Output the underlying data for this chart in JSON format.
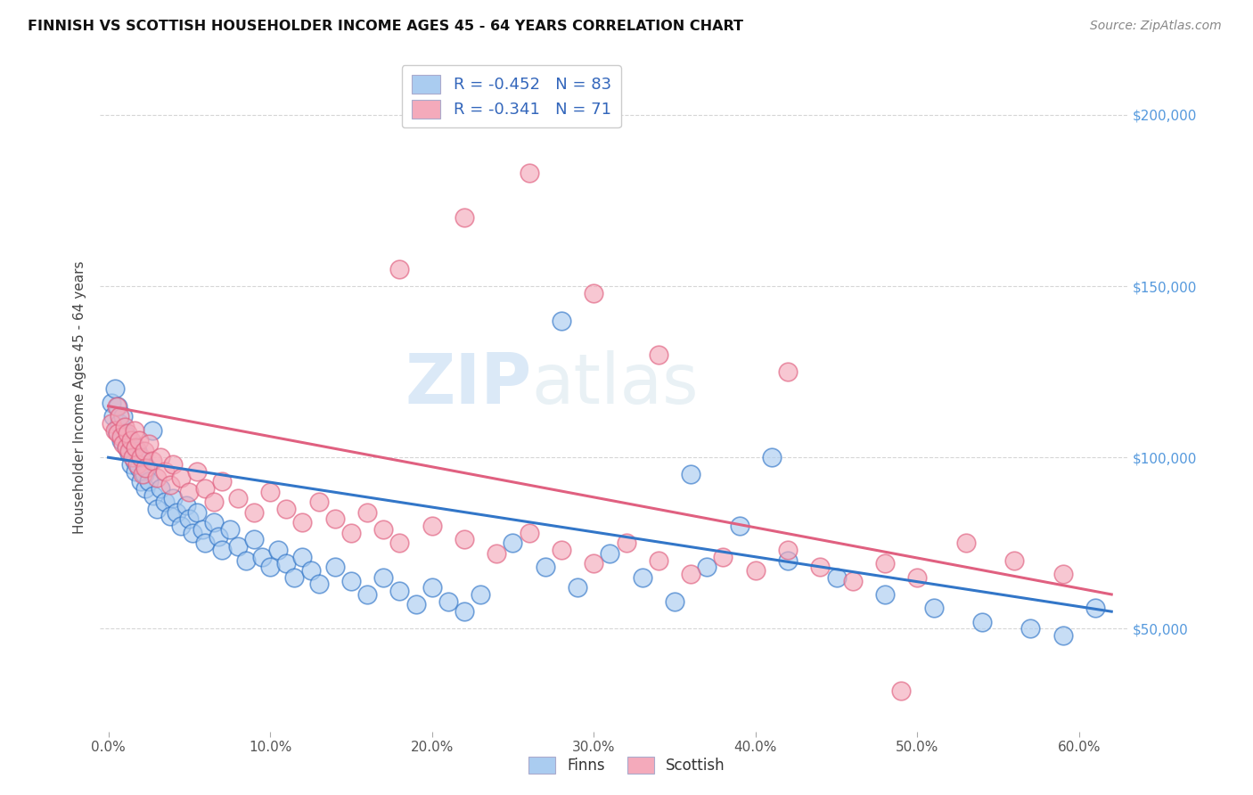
{
  "title": "FINNISH VS SCOTTISH HOUSEHOLDER INCOME AGES 45 - 64 YEARS CORRELATION CHART",
  "source": "Source: ZipAtlas.com",
  "ylabel_label": "Householder Income Ages 45 - 64 years",
  "ylabel_ticks": [
    50000,
    100000,
    150000,
    200000
  ],
  "ylabel_tick_labels": [
    "$50,000",
    "$100,000",
    "$150,000",
    "$200,000"
  ],
  "xlim": [
    -0.005,
    0.63
  ],
  "ylim": [
    20000,
    215000
  ],
  "finn_R": "-0.452",
  "finn_N": "83",
  "scott_R": "-0.341",
  "scott_N": "71",
  "finn_color": "#aaccf0",
  "scott_color": "#f4aabb",
  "finn_line_color": "#3276c8",
  "scott_line_color": "#e06080",
  "background_color": "#ffffff",
  "grid_color": "#cccccc",
  "watermark_zip": "ZIP",
  "watermark_atlas": "atlas",
  "finn_x": [
    0.002,
    0.003,
    0.004,
    0.005,
    0.006,
    0.007,
    0.008,
    0.009,
    0.01,
    0.011,
    0.012,
    0.013,
    0.014,
    0.015,
    0.016,
    0.017,
    0.018,
    0.019,
    0.02,
    0.021,
    0.022,
    0.023,
    0.024,
    0.025,
    0.027,
    0.028,
    0.03,
    0.032,
    0.035,
    0.038,
    0.04,
    0.042,
    0.045,
    0.048,
    0.05,
    0.052,
    0.055,
    0.058,
    0.06,
    0.065,
    0.068,
    0.07,
    0.075,
    0.08,
    0.085,
    0.09,
    0.095,
    0.1,
    0.105,
    0.11,
    0.115,
    0.12,
    0.125,
    0.13,
    0.14,
    0.15,
    0.16,
    0.17,
    0.18,
    0.19,
    0.2,
    0.21,
    0.22,
    0.23,
    0.25,
    0.27,
    0.29,
    0.31,
    0.33,
    0.35,
    0.37,
    0.39,
    0.42,
    0.45,
    0.48,
    0.51,
    0.54,
    0.57,
    0.59,
    0.61,
    0.28,
    0.36,
    0.41
  ],
  "finn_y": [
    116000,
    112000,
    120000,
    108000,
    115000,
    110000,
    105000,
    112000,
    107000,
    103000,
    106000,
    101000,
    98000,
    104000,
    99000,
    96000,
    102000,
    97000,
    93000,
    99000,
    95000,
    91000,
    97000,
    93000,
    108000,
    89000,
    85000,
    91000,
    87000,
    83000,
    88000,
    84000,
    80000,
    86000,
    82000,
    78000,
    84000,
    79000,
    75000,
    81000,
    77000,
    73000,
    79000,
    74000,
    70000,
    76000,
    71000,
    68000,
    73000,
    69000,
    65000,
    71000,
    67000,
    63000,
    68000,
    64000,
    60000,
    65000,
    61000,
    57000,
    62000,
    58000,
    55000,
    60000,
    75000,
    68000,
    62000,
    72000,
    65000,
    58000,
    68000,
    80000,
    70000,
    65000,
    60000,
    56000,
    52000,
    50000,
    48000,
    56000,
    140000,
    95000,
    100000
  ],
  "scott_x": [
    0.002,
    0.004,
    0.005,
    0.006,
    0.007,
    0.008,
    0.009,
    0.01,
    0.011,
    0.012,
    0.013,
    0.014,
    0.015,
    0.016,
    0.017,
    0.018,
    0.019,
    0.02,
    0.021,
    0.022,
    0.023,
    0.025,
    0.027,
    0.03,
    0.032,
    0.035,
    0.038,
    0.04,
    0.045,
    0.05,
    0.055,
    0.06,
    0.065,
    0.07,
    0.08,
    0.09,
    0.1,
    0.11,
    0.12,
    0.13,
    0.14,
    0.15,
    0.16,
    0.17,
    0.18,
    0.2,
    0.22,
    0.24,
    0.26,
    0.28,
    0.3,
    0.32,
    0.34,
    0.36,
    0.38,
    0.4,
    0.42,
    0.44,
    0.46,
    0.48,
    0.5,
    0.53,
    0.56,
    0.59,
    0.18,
    0.22,
    0.26,
    0.3,
    0.34,
    0.42,
    0.49
  ],
  "scott_y": [
    110000,
    108000,
    115000,
    107000,
    112000,
    106000,
    104000,
    109000,
    103000,
    107000,
    102000,
    105000,
    100000,
    108000,
    103000,
    98000,
    105000,
    100000,
    95000,
    102000,
    97000,
    104000,
    99000,
    94000,
    100000,
    96000,
    92000,
    98000,
    94000,
    90000,
    96000,
    91000,
    87000,
    93000,
    88000,
    84000,
    90000,
    85000,
    81000,
    87000,
    82000,
    78000,
    84000,
    79000,
    75000,
    80000,
    76000,
    72000,
    78000,
    73000,
    69000,
    75000,
    70000,
    66000,
    71000,
    67000,
    73000,
    68000,
    64000,
    69000,
    65000,
    75000,
    70000,
    66000,
    155000,
    170000,
    183000,
    148000,
    130000,
    125000,
    32000
  ]
}
